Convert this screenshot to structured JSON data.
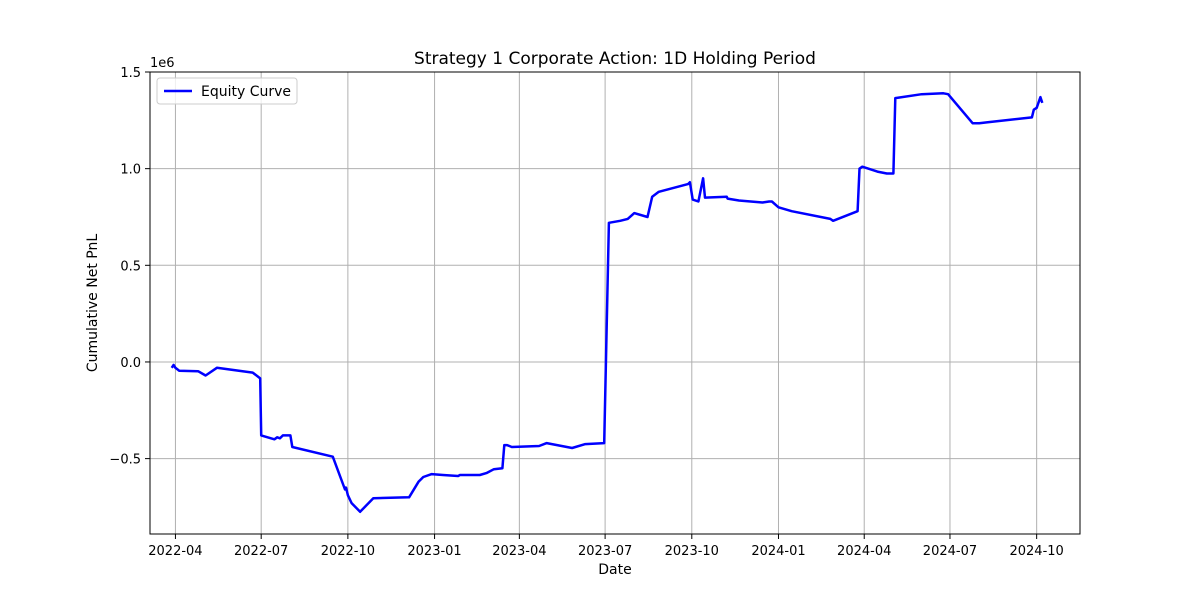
{
  "chart_data": {
    "type": "line",
    "title": "Strategy 1 Corporate Action: 1D Holding Period",
    "xlabel": "Date",
    "ylabel": "Cumulative Net PnL",
    "y_offset_label": "1e6",
    "y_scale_factor": 1000000,
    "xlim": [
      "2022-03-05",
      "2024-11-16"
    ],
    "ylim": [
      -0.89,
      1.5
    ],
    "x_ticks": [
      {
        "date": "2022-04-01",
        "label": "2022-04"
      },
      {
        "date": "2022-07-01",
        "label": "2022-07"
      },
      {
        "date": "2022-10-01",
        "label": "2022-10"
      },
      {
        "date": "2023-01-01",
        "label": "2023-01"
      },
      {
        "date": "2023-04-01",
        "label": "2023-04"
      },
      {
        "date": "2023-07-01",
        "label": "2023-07"
      },
      {
        "date": "2023-10-01",
        "label": "2023-10"
      },
      {
        "date": "2024-01-01",
        "label": "2024-01"
      },
      {
        "date": "2024-04-01",
        "label": "2024-04"
      },
      {
        "date": "2024-07-01",
        "label": "2024-07"
      },
      {
        "date": "2024-10-01",
        "label": "2024-10"
      }
    ],
    "y_ticks": [
      {
        "value": -0.5,
        "label": "−0.5"
      },
      {
        "value": 0.0,
        "label": "0.0"
      },
      {
        "value": 0.5,
        "label": "0.5"
      },
      {
        "value": 1.0,
        "label": "1.0"
      },
      {
        "value": 1.5,
        "label": "1.5"
      }
    ],
    "grid": true,
    "legend_position": "top-left",
    "series": [
      {
        "name": "Equity Curve",
        "color": "#0000ff",
        "x": [
          "2022-03-28",
          "2022-03-30",
          "2022-04-01",
          "2022-04-05",
          "2022-04-25",
          "2022-05-03",
          "2022-05-15",
          "2022-06-22",
          "2022-06-30",
          "2022-07-01",
          "2022-07-15",
          "2022-07-18",
          "2022-07-21",
          "2022-07-24",
          "2022-08-01",
          "2022-08-03",
          "2022-09-15",
          "2022-09-28",
          "2022-09-29",
          "2022-10-01",
          "2022-10-05",
          "2022-10-14",
          "2022-10-28",
          "2022-12-05",
          "2022-12-15",
          "2022-12-20",
          "2022-12-29",
          "2023-01-10",
          "2023-01-26",
          "2023-01-28",
          "2023-02-18",
          "2023-02-25",
          "2023-03-05",
          "2023-03-14",
          "2023-03-16",
          "2023-03-19",
          "2023-03-24",
          "2023-04-22",
          "2023-04-30",
          "2023-05-27",
          "2023-06-10",
          "2023-06-30",
          "2023-07-05",
          "2023-07-17",
          "2023-07-25",
          "2023-08-01",
          "2023-08-15",
          "2023-08-20",
          "2023-08-27",
          "2023-09-27",
          "2023-09-29",
          "2023-10-02",
          "2023-10-08",
          "2023-10-13",
          "2023-10-15",
          "2023-11-07",
          "2023-11-08",
          "2023-11-20",
          "2023-12-15",
          "2023-12-22",
          "2023-12-25",
          "2024-01-01",
          "2024-01-15",
          "2024-02-25",
          "2024-02-28",
          "2024-03-25",
          "2024-03-27",
          "2024-03-30",
          "2024-04-15",
          "2024-04-25",
          "2024-05-02",
          "2024-05-04",
          "2024-06-01",
          "2024-06-24",
          "2024-06-29",
          "2024-07-25",
          "2024-08-01",
          "2024-08-10",
          "2024-09-26",
          "2024-09-28",
          "2024-10-01",
          "2024-10-05",
          "2024-10-07"
        ],
        "values": [
          -0.03,
          -0.015,
          -0.03,
          -0.045,
          -0.048,
          -0.07,
          -0.03,
          -0.055,
          -0.085,
          -0.38,
          -0.4,
          -0.39,
          -0.395,
          -0.38,
          -0.38,
          -0.44,
          -0.49,
          -0.66,
          -0.65,
          -0.69,
          -0.73,
          -0.775,
          -0.705,
          -0.7,
          -0.62,
          -0.595,
          -0.58,
          -0.585,
          -0.59,
          -0.585,
          -0.585,
          -0.575,
          -0.555,
          -0.55,
          -0.43,
          -0.43,
          -0.44,
          -0.435,
          -0.42,
          -0.445,
          -0.425,
          -0.42,
          0.72,
          0.73,
          0.74,
          0.77,
          0.75,
          0.855,
          0.88,
          0.92,
          0.93,
          0.84,
          0.83,
          0.95,
          0.85,
          0.855,
          0.845,
          0.835,
          0.825,
          0.83,
          0.83,
          0.8,
          0.78,
          0.74,
          0.73,
          0.78,
          1.0,
          1.01,
          0.985,
          0.975,
          0.975,
          1.365,
          1.385,
          1.39,
          1.385,
          1.235,
          1.235,
          1.24,
          1.265,
          1.305,
          1.315,
          1.37,
          1.34
        ]
      }
    ]
  }
}
